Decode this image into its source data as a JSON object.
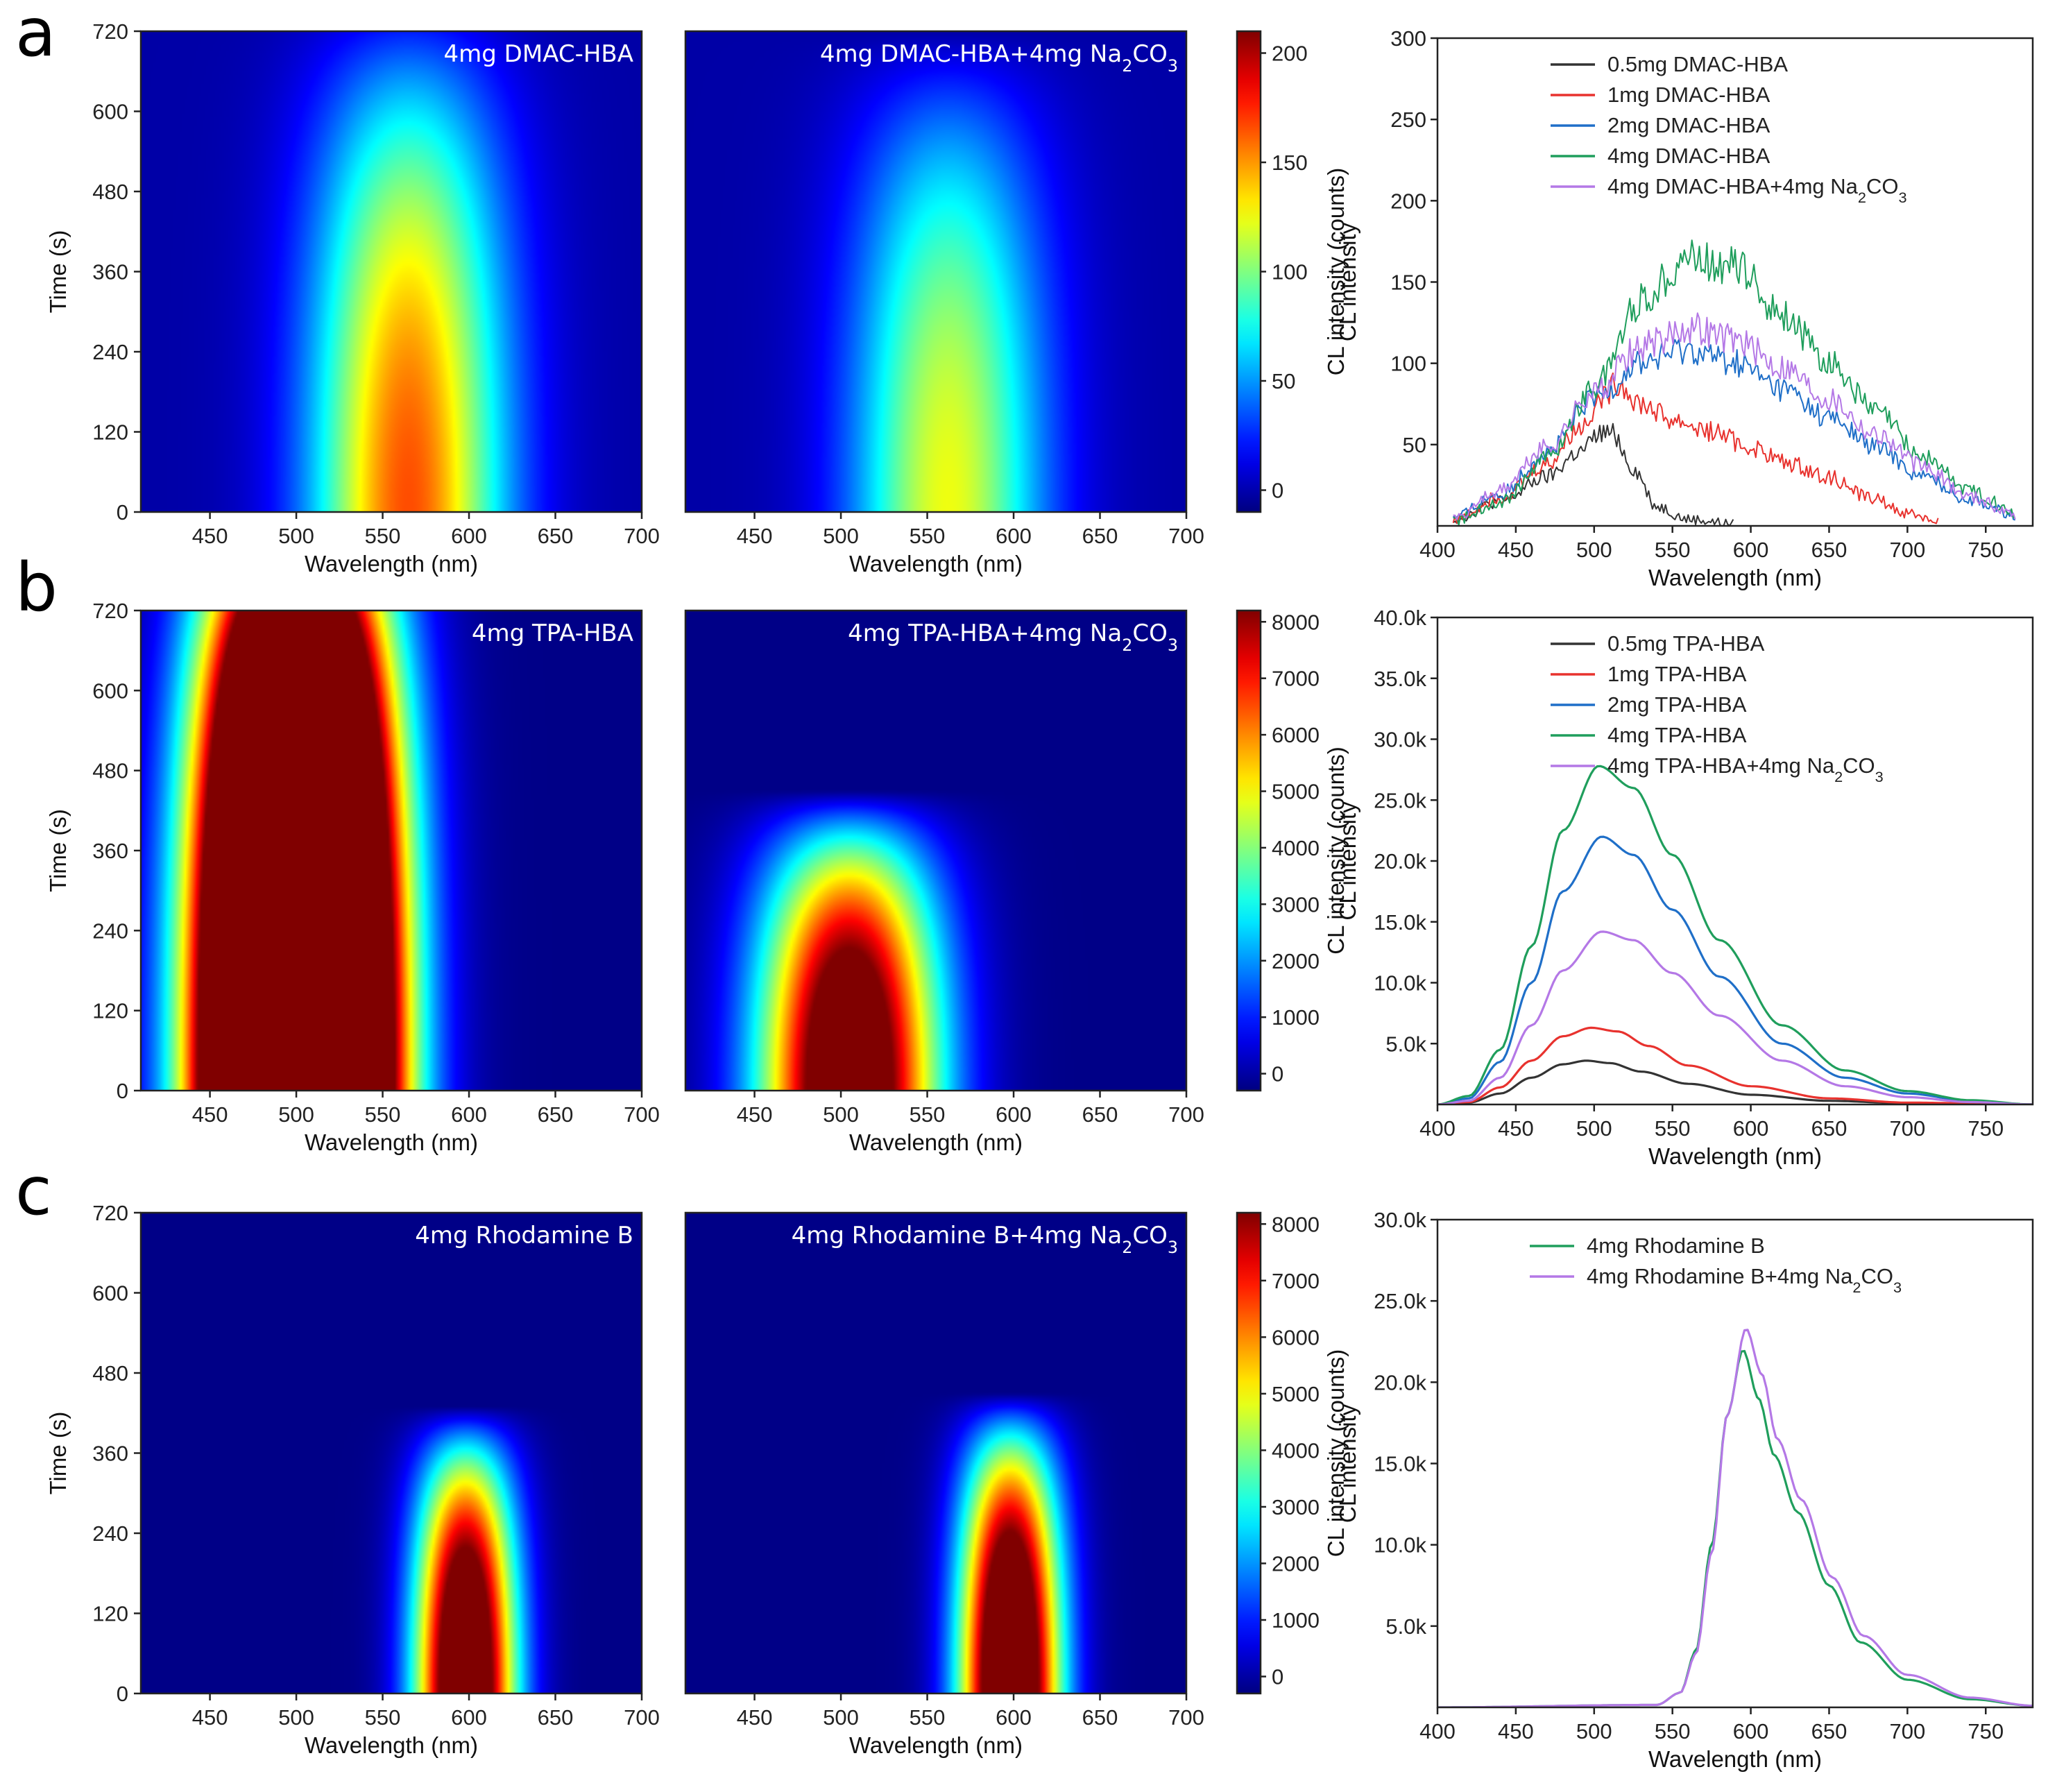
{
  "panel_letters": [
    "a",
    "b",
    "c"
  ],
  "colors": {
    "black": "#333333",
    "red": "#e8322e",
    "blue": "#1f6fc8",
    "green": "#1f9e5c",
    "purple": "#b478e6"
  },
  "chart_data": [
    {
      "type": "heatmap",
      "row": 0,
      "title": "4mg DMAC-HBA",
      "xlabel": "Wavelength (nm)",
      "ylabel": "Time (s)",
      "xlim": [
        410,
        700
      ],
      "ylim": [
        0,
        720
      ],
      "xticks": [
        450,
        500,
        550,
        600,
        650,
        700
      ],
      "yticks": [
        0,
        120,
        240,
        360,
        480,
        600,
        720
      ],
      "model": {
        "peak_wavelength": 565,
        "width": 55,
        "half_width_time": 780,
        "max": 160,
        "vmax": 210,
        "floor": 8
      }
    },
    {
      "type": "heatmap",
      "row": 0,
      "title": "4mg DMAC-HBA+4mg Na2CO3",
      "xlabel": "Wavelength (nm)",
      "ylabel": "",
      "xlim": [
        410,
        700
      ],
      "ylim": [
        0,
        720
      ],
      "xticks": [
        450,
        500,
        550,
        600,
        650,
        700
      ],
      "yticks": [],
      "model": {
        "peak_wavelength": 562,
        "width": 55,
        "half_width_time": 720,
        "max": 120,
        "vmax": 210,
        "floor": 8
      }
    },
    {
      "type": "colorbar",
      "row": 0,
      "label": "CL intensity (counts)",
      "range": [
        -10,
        210
      ],
      "ticks": [
        0,
        50,
        100,
        150,
        200
      ]
    },
    {
      "type": "line",
      "row": 0,
      "xlabel": "Wavelength (nm)",
      "ylabel": "CL intensity",
      "xlim": [
        400,
        780
      ],
      "ylim": [
        0,
        300
      ],
      "xticks": [
        400,
        450,
        500,
        550,
        600,
        650,
        700,
        750
      ],
      "yticks": [
        50,
        100,
        150,
        200,
        250,
        300
      ],
      "noisy": true,
      "series": [
        {
          "name": "0.5mg DMAC-HBA",
          "color": "#333333",
          "x": [
            410,
            440,
            470,
            490,
            505,
            512,
            525,
            540,
            560,
            590
          ],
          "y": [
            4,
            15,
            30,
            45,
            57,
            57,
            35,
            12,
            4,
            1
          ]
        },
        {
          "name": "1mg DMAC-HBA",
          "color": "#e8322e",
          "x": [
            410,
            440,
            470,
            490,
            505,
            515,
            530,
            550,
            575,
            600,
            625,
            650,
            675,
            700,
            720
          ],
          "y": [
            4,
            18,
            38,
            60,
            78,
            88,
            75,
            65,
            58,
            48,
            38,
            30,
            18,
            8,
            3
          ]
        },
        {
          "name": "2mg DMAC-HBA",
          "color": "#1f6fc8",
          "x": [
            410,
            440,
            470,
            500,
            530,
            560,
            590,
            620,
            650,
            680,
            710,
            740,
            770
          ],
          "y": [
            5,
            20,
            45,
            78,
            100,
            108,
            100,
            84,
            66,
            48,
            30,
            16,
            6
          ]
        },
        {
          "name": "4mg DMAC-HBA",
          "color": "#1f9e5c",
          "x": [
            410,
            440,
            470,
            500,
            530,
            560,
            590,
            620,
            650,
            680,
            710,
            740,
            770
          ],
          "y": [
            3,
            15,
            42,
            85,
            138,
            165,
            160,
            130,
            100,
            70,
            42,
            22,
            8
          ]
        },
        {
          "name": "4mg DMAC-HBA+4mg Na2CO3",
          "color": "#b478e6",
          "x": [
            410,
            440,
            470,
            500,
            530,
            560,
            590,
            620,
            650,
            680,
            710,
            740,
            770
          ],
          "y": [
            5,
            22,
            48,
            82,
            110,
            122,
            115,
            98,
            78,
            56,
            36,
            18,
            7
          ]
        }
      ]
    },
    {
      "type": "heatmap",
      "row": 1,
      "title": "4mg TPA-HBA",
      "xlabel": "Wavelength (nm)",
      "ylabel": "Time (s)",
      "xlim": [
        410,
        700
      ],
      "ylim": [
        0,
        720
      ],
      "xticks": [
        450,
        500,
        550,
        600,
        650,
        700
      ],
      "yticks": [
        0,
        120,
        240,
        360,
        480,
        600,
        720
      ],
      "model": {
        "peak_wavelength": 500,
        "width": 50,
        "half_width_time": 950,
        "max": 30000,
        "vmax": 8200,
        "floor": 60
      }
    },
    {
      "type": "heatmap",
      "row": 1,
      "title": "4mg TPA-HBA+4mg Na2CO3",
      "xlabel": "Wavelength (nm)",
      "ylabel": "",
      "xlim": [
        410,
        700
      ],
      "ylim": [
        0,
        720
      ],
      "xticks": [
        450,
        500,
        550,
        600,
        650,
        700
      ],
      "yticks": [],
      "model": {
        "peak_wavelength": 505,
        "width": 50,
        "half_width_time": 450,
        "max": 10500,
        "vmax": 8200,
        "floor": 60
      }
    },
    {
      "type": "colorbar",
      "row": 1,
      "label": "CL intensity (counts)",
      "range": [
        -300,
        8200
      ],
      "ticks": [
        0,
        1000,
        2000,
        3000,
        4000,
        5000,
        6000,
        7000,
        8000
      ]
    },
    {
      "type": "line",
      "row": 1,
      "xlabel": "Wavelength (nm)",
      "ylabel": "CL intensity",
      "xlim": [
        400,
        780
      ],
      "ylim": [
        0,
        40000
      ],
      "xticks": [
        400,
        450,
        500,
        550,
        600,
        650,
        700,
        750
      ],
      "yticks": [
        5000,
        10000,
        15000,
        20000,
        25000,
        30000,
        35000,
        40000
      ],
      "ytick_labels": [
        "5.0k",
        "10.0k",
        "15.0k",
        "20.0k",
        "25.0k",
        "30.0k",
        "35.0k",
        "40.0k"
      ],
      "noisy": false,
      "series": [
        {
          "name": "0.5mg TPA-HBA",
          "color": "#333333",
          "x": [
            400,
            420,
            440,
            460,
            480,
            495,
            510,
            530,
            560,
            600,
            650,
            700,
            780
          ],
          "y": [
            0,
            150,
            900,
            2200,
            3300,
            3600,
            3400,
            2700,
            1700,
            800,
            300,
            100,
            0
          ]
        },
        {
          "name": "1mg TPA-HBA",
          "color": "#e8322e",
          "x": [
            400,
            420,
            440,
            460,
            480,
            498,
            515,
            535,
            560,
            600,
            650,
            700,
            780
          ],
          "y": [
            0,
            200,
            1400,
            3600,
            5600,
            6300,
            6000,
            4800,
            3200,
            1500,
            500,
            150,
            0
          ]
        },
        {
          "name": "2mg TPA-HBA",
          "color": "#1f6fc8",
          "x": [
            400,
            420,
            440,
            460,
            480,
            505,
            525,
            550,
            580,
            620,
            660,
            700,
            740,
            780
          ],
          "y": [
            0,
            500,
            3500,
            10000,
            17500,
            22000,
            20500,
            16000,
            10500,
            5000,
            2200,
            900,
            300,
            0
          ]
        },
        {
          "name": "4mg TPA-HBA",
          "color": "#1f9e5c",
          "x": [
            400,
            420,
            440,
            460,
            480,
            503,
            525,
            550,
            580,
            620,
            660,
            700,
            740,
            780
          ],
          "y": [
            0,
            700,
            4500,
            13000,
            22500,
            27800,
            26000,
            20500,
            13500,
            6500,
            2800,
            1100,
            350,
            0
          ]
        },
        {
          "name": "4mg TPA-HBA+4mg Na2CO3",
          "color": "#b478e6",
          "x": [
            400,
            420,
            440,
            460,
            480,
            505,
            525,
            550,
            580,
            620,
            660,
            700,
            740,
            780
          ],
          "y": [
            0,
            300,
            2200,
            6500,
            11000,
            14200,
            13500,
            10800,
            7300,
            3600,
            1500,
            600,
            200,
            0
          ]
        }
      ]
    },
    {
      "type": "heatmap",
      "row": 2,
      "title": "4mg Rhodamine B",
      "xlabel": "Wavelength (nm)",
      "ylabel": "Time (s)",
      "xlim": [
        410,
        700
      ],
      "ylim": [
        0,
        720
      ],
      "xticks": [
        450,
        500,
        550,
        600,
        650,
        700
      ],
      "yticks": [
        0,
        120,
        240,
        360,
        480,
        600,
        720
      ],
      "model": {
        "peak_wavelength": 598,
        "width": 28,
        "half_width_time": 430,
        "max": 11000,
        "vmax": 8200,
        "floor": 60
      }
    },
    {
      "type": "heatmap",
      "row": 2,
      "title": "4mg Rhodamine B+4mg Na2CO3",
      "xlabel": "Wavelength (nm)",
      "ylabel": "",
      "xlim": [
        410,
        700
      ],
      "ylim": [
        0,
        720
      ],
      "xticks": [
        450,
        500,
        550,
        600,
        650,
        700
      ],
      "yticks": [],
      "model": {
        "peak_wavelength": 598,
        "width": 28,
        "half_width_time": 450,
        "max": 11500,
        "vmax": 8200,
        "floor": 60
      }
    },
    {
      "type": "colorbar",
      "row": 2,
      "label": "CL intensity (counts)",
      "range": [
        -300,
        8200
      ],
      "ticks": [
        0,
        1000,
        2000,
        3000,
        4000,
        5000,
        6000,
        7000,
        8000
      ]
    },
    {
      "type": "line",
      "row": 2,
      "xlabel": "Wavelength (nm)",
      "ylabel": "CL intensity",
      "xlim": [
        400,
        780
      ],
      "ylim": [
        0,
        30000
      ],
      "xticks": [
        400,
        450,
        500,
        550,
        600,
        650,
        700,
        750
      ],
      "yticks": [
        5000,
        10000,
        15000,
        20000,
        25000,
        30000
      ],
      "ytick_labels": [
        "5.0k",
        "10.0k",
        "15.0k",
        "20.0k",
        "25.0k",
        "30.0k"
      ],
      "noisy": false,
      "series": [
        {
          "name": "4mg Rhodamine B",
          "color": "#1f9e5c",
          "x": [
            400,
            540,
            555,
            565,
            575,
            585,
            595,
            605,
            615,
            630,
            650,
            670,
            700,
            740,
            780
          ],
          "y": [
            0,
            150,
            900,
            3500,
            10000,
            18000,
            22000,
            19000,
            15500,
            12000,
            7500,
            4000,
            1700,
            500,
            100
          ]
        },
        {
          "name": "4mg Rhodamine B+4mg Na2CO3",
          "color": "#b478e6",
          "x": [
            400,
            540,
            555,
            565,
            575,
            585,
            597,
            607,
            617,
            632,
            652,
            672,
            700,
            740,
            780
          ],
          "y": [
            0,
            150,
            900,
            3300,
            9500,
            18000,
            23300,
            20500,
            16500,
            12800,
            8000,
            4400,
            2000,
            600,
            100
          ]
        }
      ]
    }
  ]
}
